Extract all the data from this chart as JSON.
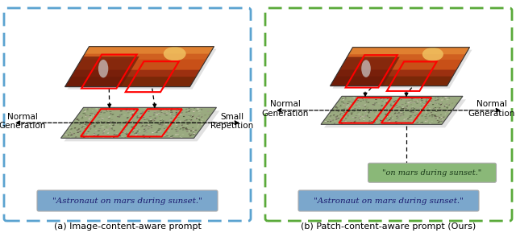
{
  "fig_width": 6.4,
  "fig_height": 2.89,
  "dpi": 100,
  "background_color": "#ffffff",
  "left_box": {
    "border_color": "#5ba3d0",
    "label": "(a) Image-content-aware prompt",
    "prompt_text": "\"Astronaut on mars during sunset.\"",
    "prompt_bg": "#7ba7cc",
    "prompt_text_color": "#1a1a6e",
    "left_arrow_label": "Normal\nGeneration",
    "right_arrow_label": "Small\nRepetition"
  },
  "right_box": {
    "border_color": "#5aaa3a",
    "label": "(b) Patch-content-aware prompt (Ours)",
    "prompt_text": "\"Astronaut on mars during sunset.\"",
    "prompt_bg": "#7ba7cc",
    "prompt_text_color": "#1a1a6e",
    "patch_prompt_text": "\"on mars during sunset.\"",
    "patch_prompt_bg": "#8ab878",
    "patch_prompt_text_color": "#1a3a1a",
    "left_arrow_label": "Normal\nGeneration",
    "right_arrow_label": "Normal\nGeneration"
  }
}
